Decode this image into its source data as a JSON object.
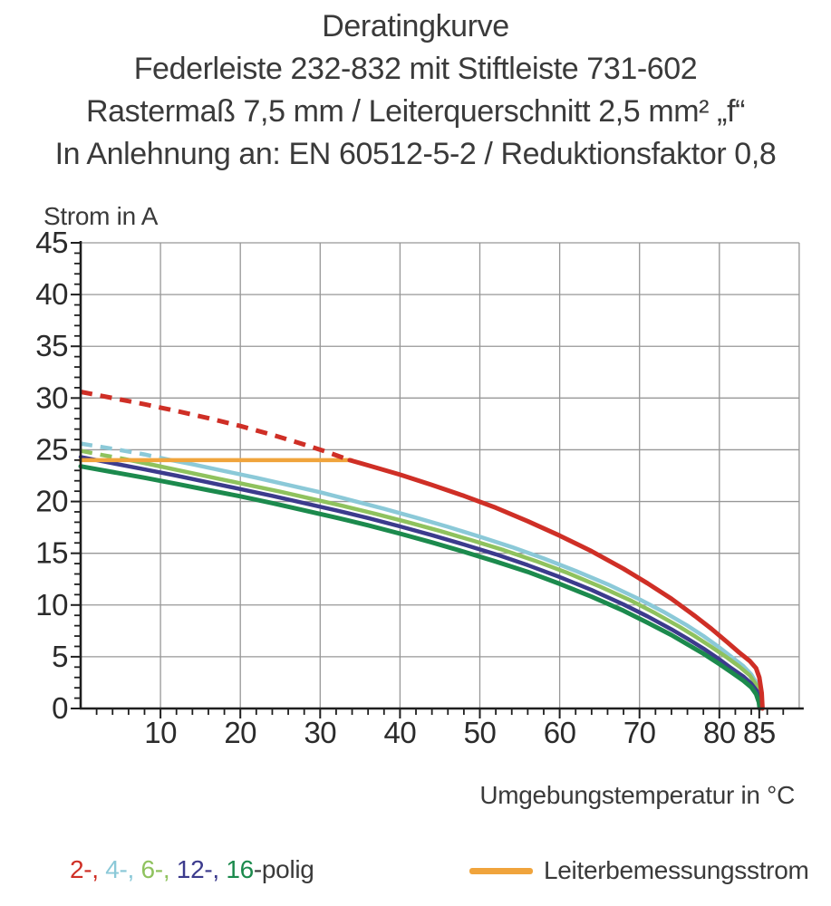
{
  "header": {
    "lines": [
      "Deratingkurve",
      "Federleiste 232-832 mit Stiftleiste 731-602",
      "Rastermaß 7,5 mm / Leiterquerschnitt 2,5 mm² „f“",
      "In Anlehnung an: EN 60512-5-2 / Reduktionsfaktor 0,8"
    ]
  },
  "chart_data": {
    "type": "line",
    "title": "Deratingkurve",
    "xlabel": "Umgebungstemperatur in °C",
    "ylabel": "Strom in A",
    "xlim": [
      0,
      90
    ],
    "ylim": [
      0,
      45
    ],
    "x_major_ticks": [
      10,
      20,
      30,
      40,
      50,
      60,
      70,
      80,
      85
    ],
    "x_minor_step": 2,
    "y_major_ticks": [
      0,
      5,
      10,
      15,
      20,
      25,
      30,
      35,
      40,
      45
    ],
    "y_minor_step": 1,
    "grid_x": [
      10,
      20,
      30,
      40,
      50,
      60,
      70,
      80,
      90
    ],
    "grid_y": [
      5,
      10,
      15,
      20,
      25,
      30,
      35,
      40,
      45
    ],
    "grid_on": true,
    "grid_color": "#979797",
    "axis_color": "#1f1f1f",
    "series": [
      {
        "name": "4-polig",
        "color": "#8bc9d8",
        "width": 4.5,
        "segments": [
          {
            "style": "dashed",
            "points": [
              [
                0,
                25.6
              ],
              [
                4,
                25.1
              ],
              [
                8,
                24.55
              ],
              [
                11,
                24.05
              ]
            ]
          },
          {
            "style": "solid",
            "points": [
              [
                11,
                24.05
              ],
              [
                14,
                23.6
              ],
              [
                18,
                22.95
              ],
              [
                22,
                22.3
              ],
              [
                26,
                21.6
              ],
              [
                30,
                20.9
              ],
              [
                34,
                20.1
              ],
              [
                38,
                19.3
              ],
              [
                42,
                18.45
              ],
              [
                46,
                17.55
              ],
              [
                50,
                16.6
              ],
              [
                54,
                15.6
              ],
              [
                58,
                14.5
              ],
              [
                62,
                13.3
              ],
              [
                66,
                12.0
              ],
              [
                70,
                10.55
              ],
              [
                73,
                9.35
              ],
              [
                76,
                8.0
              ],
              [
                78,
                7.0
              ],
              [
                80,
                5.9
              ],
              [
                81.5,
                5.0
              ],
              [
                83,
                4.1
              ],
              [
                84,
                3.3
              ],
              [
                84.7,
                2.4
              ],
              [
                85.1,
                1.2
              ],
              [
                85.2,
                0
              ]
            ]
          }
        ]
      },
      {
        "name": "6-polig",
        "color": "#8fc25e",
        "width": 4.5,
        "segments": [
          {
            "style": "dashed",
            "points": [
              [
                0,
                24.9
              ],
              [
                3,
                24.45
              ],
              [
                5.5,
                24.1
              ]
            ]
          },
          {
            "style": "solid",
            "points": [
              [
                5.5,
                24.1
              ],
              [
                9,
                23.55
              ],
              [
                13,
                22.9
              ],
              [
                17,
                22.25
              ],
              [
                21,
                21.6
              ],
              [
                25,
                20.95
              ],
              [
                29,
                20.25
              ],
              [
                33,
                19.55
              ],
              [
                37,
                18.8
              ],
              [
                41,
                18.0
              ],
              [
                45,
                17.15
              ],
              [
                49,
                16.25
              ],
              [
                53,
                15.3
              ],
              [
                57,
                14.25
              ],
              [
                61,
                13.1
              ],
              [
                65,
                11.8
              ],
              [
                69,
                10.4
              ],
              [
                72,
                9.2
              ],
              [
                75,
                7.9
              ],
              [
                77,
                6.95
              ],
              [
                79,
                5.95
              ],
              [
                81,
                4.9
              ],
              [
                82.5,
                4.05
              ],
              [
                83.8,
                3.2
              ],
              [
                84.6,
                2.3
              ],
              [
                85.0,
                1.1
              ],
              [
                85.15,
                0
              ]
            ]
          }
        ]
      },
      {
        "name": "12-polig",
        "color": "#3c3b8d",
        "width": 4.5,
        "segments": [
          {
            "style": "solid",
            "points": [
              [
                0,
                24.3
              ],
              [
                4,
                23.7
              ],
              [
                8,
                23.1
              ],
              [
                12,
                22.5
              ],
              [
                16,
                21.85
              ],
              [
                20,
                21.2
              ],
              [
                24,
                20.55
              ],
              [
                28,
                19.85
              ],
              [
                32,
                19.15
              ],
              [
                36,
                18.4
              ],
              [
                40,
                17.6
              ],
              [
                44,
                16.75
              ],
              [
                48,
                15.85
              ],
              [
                52,
                14.9
              ],
              [
                56,
                13.85
              ],
              [
                60,
                12.7
              ],
              [
                64,
                11.45
              ],
              [
                68,
                10.05
              ],
              [
                71,
                8.9
              ],
              [
                74,
                7.65
              ],
              [
                76,
                6.75
              ],
              [
                78,
                5.8
              ],
              [
                80,
                4.75
              ],
              [
                81.5,
                3.9
              ],
              [
                83,
                3.1
              ],
              [
                84,
                2.4
              ],
              [
                84.7,
                1.7
              ],
              [
                85.0,
                0.8
              ],
              [
                85.1,
                0
              ]
            ]
          }
        ]
      },
      {
        "name": "16-polig",
        "color": "#1c8a4d",
        "width": 5,
        "segments": [
          {
            "style": "solid",
            "points": [
              [
                0,
                23.4
              ],
              [
                4,
                22.85
              ],
              [
                8,
                22.3
              ],
              [
                12,
                21.7
              ],
              [
                16,
                21.1
              ],
              [
                20,
                20.5
              ],
              [
                24,
                19.85
              ],
              [
                28,
                19.15
              ],
              [
                32,
                18.45
              ],
              [
                36,
                17.7
              ],
              [
                40,
                16.9
              ],
              [
                44,
                16.05
              ],
              [
                48,
                15.15
              ],
              [
                52,
                14.2
              ],
              [
                56,
                13.2
              ],
              [
                60,
                12.05
              ],
              [
                64,
                10.8
              ],
              [
                68,
                9.45
              ],
              [
                71,
                8.3
              ],
              [
                74,
                7.1
              ],
              [
                76,
                6.2
              ],
              [
                78,
                5.3
              ],
              [
                80,
                4.3
              ],
              [
                81.5,
                3.5
              ],
              [
                83,
                2.7
              ],
              [
                84,
                2.05
              ],
              [
                84.6,
                1.4
              ],
              [
                84.95,
                0.6
              ],
              [
                85.05,
                0
              ]
            ]
          }
        ]
      },
      {
        "name": "Leiterbemessungsstrom",
        "color": "#f0a43c",
        "width": 4.5,
        "segments": [
          {
            "style": "solid",
            "points": [
              [
                0,
                24
              ],
              [
                33.9,
                24
              ]
            ]
          }
        ]
      },
      {
        "name": "2-polig",
        "color": "#cf2f26",
        "width": 5,
        "segments": [
          {
            "style": "dashed",
            "points": [
              [
                0,
                30.6
              ],
              [
                4,
                30.0
              ],
              [
                8,
                29.4
              ],
              [
                12,
                28.75
              ],
              [
                16,
                28.05
              ],
              [
                20,
                27.3
              ],
              [
                24,
                26.45
              ],
              [
                28,
                25.5
              ],
              [
                31,
                24.75
              ],
              [
                33.7,
                24.0
              ]
            ]
          },
          {
            "style": "solid",
            "points": [
              [
                33.7,
                24.0
              ],
              [
                36,
                23.5
              ],
              [
                40,
                22.6
              ],
              [
                44,
                21.6
              ],
              [
                48,
                20.55
              ],
              [
                52,
                19.4
              ],
              [
                56,
                18.1
              ],
              [
                60,
                16.7
              ],
              [
                64,
                15.2
              ],
              [
                68,
                13.5
              ],
              [
                71,
                12.1
              ],
              [
                74,
                10.6
              ],
              [
                77,
                8.9
              ],
              [
                79,
                7.7
              ],
              [
                81,
                6.4
              ],
              [
                82.5,
                5.4
              ],
              [
                83.8,
                4.6
              ],
              [
                84.6,
                3.9
              ],
              [
                85.0,
                3.0
              ],
              [
                85.3,
                1.5
              ],
              [
                85.4,
                0
              ]
            ]
          }
        ]
      }
    ]
  },
  "legend": {
    "poles": {
      "segments": [
        {
          "text": "2-, ",
          "color": "#cf2f26"
        },
        {
          "text": "4-, ",
          "color": "#8bc9d8"
        },
        {
          "text": "6-, ",
          "color": "#8fc25e"
        },
        {
          "text": "12-, ",
          "color": "#3c3b8d"
        },
        {
          "text": "16",
          "color": "#1c8a4d"
        },
        {
          "text": "-polig",
          "color": "#3a3a3a"
        }
      ]
    },
    "rated_current": {
      "label": "Leiterbemessungsstrom",
      "color": "#f0a43c"
    }
  }
}
